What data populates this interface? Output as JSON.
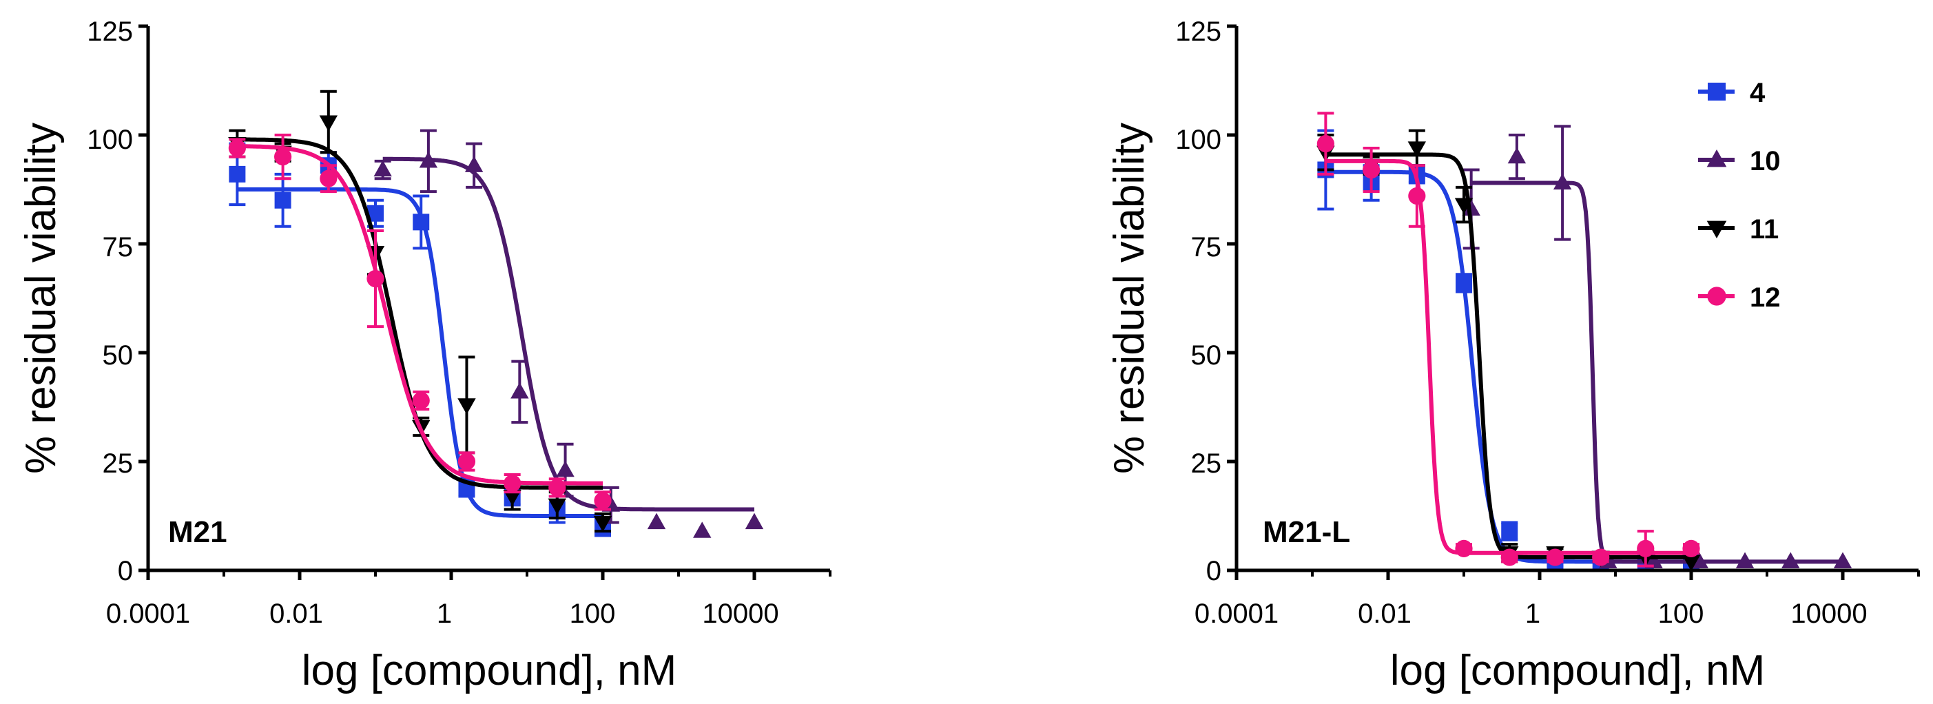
{
  "chart_data": [
    {
      "type": "scatter",
      "panel_label": "M21",
      "xlabel": "log [compound], nM",
      "ylabel": "% residual viability",
      "xscale": "log",
      "xlim": [
        0.0001,
        100000
      ],
      "ylim": [
        0,
        125
      ],
      "x_ticks": [
        0.0001,
        0.01,
        1,
        100,
        10000
      ],
      "x_tick_labels": [
        "0.0001",
        "0.01",
        "1",
        "100",
        "10000"
      ],
      "y_ticks": [
        0,
        25,
        50,
        75,
        100,
        125
      ],
      "y_tick_labels": [
        "0",
        "25",
        "50",
        "75",
        "100",
        "125"
      ],
      "grid": false,
      "legend": false,
      "series": [
        {
          "name": "4",
          "color": "#1f3fe0",
          "marker": "square",
          "x": [
            0.0015,
            0.006,
            0.024,
            0.1,
            0.4,
            1.6,
            6.4,
            25,
            100
          ],
          "y": [
            91,
            85,
            93,
            82,
            80,
            19,
            17,
            14,
            10
          ],
          "err": [
            7,
            6,
            3,
            3,
            6,
            2,
            2,
            3,
            2
          ],
          "fit": {
            "top": 87.5,
            "bottom": 12.5,
            "ec50": 0.8,
            "hill": 3.5
          }
        },
        {
          "name": "10",
          "color": "#4b1a6b",
          "marker": "triangle-up",
          "x": [
            0.125,
            0.5,
            2,
            8,
            32,
            128,
            512,
            2048,
            10000
          ],
          "y": [
            92,
            94,
            93,
            41,
            23,
            15,
            11,
            9,
            11
          ],
          "err": [
            2,
            7,
            5,
            7,
            6,
            4,
            0,
            0,
            0
          ],
          "fit": {
            "top": 94.5,
            "bottom": 14,
            "ec50": 8.5,
            "hill": 2.2
          }
        },
        {
          "name": "11",
          "color": "#000000",
          "marker": "triangle-down",
          "x": [
            0.0015,
            0.006,
            0.024,
            0.1,
            0.4,
            1.6,
            6.4,
            25,
            100
          ],
          "y": [
            98,
            96,
            103,
            73,
            33,
            38,
            17,
            15,
            11
          ],
          "err": [
            3,
            2,
            7,
            5,
            2,
            11,
            3,
            3,
            2
          ],
          "fit": {
            "top": 99,
            "bottom": 19,
            "ec50": 0.16,
            "hill": 1.8
          }
        },
        {
          "name": "12",
          "color": "#f0117f",
          "marker": "circle",
          "x": [
            0.0015,
            0.006,
            0.024,
            0.1,
            0.4,
            1.6,
            6.4,
            25,
            100
          ],
          "y": [
            97,
            95,
            90,
            67,
            39,
            25,
            20,
            19,
            16
          ],
          "err": [
            2,
            5,
            3,
            11,
            2,
            2,
            2,
            2,
            2
          ],
          "fit": {
            "top": 97.5,
            "bottom": 20,
            "ec50": 0.14,
            "hill": 1.6
          }
        }
      ]
    },
    {
      "type": "scatter",
      "panel_label": "M21-L",
      "xlabel": "log [compound], nM",
      "ylabel": "% residual viability",
      "xscale": "log",
      "xlim": [
        0.0001,
        100000
      ],
      "ylim": [
        0,
        125
      ],
      "x_ticks": [
        0.0001,
        0.01,
        1,
        100,
        10000
      ],
      "x_tick_labels": [
        "0.0001",
        "0.01",
        "1",
        "100",
        "10000"
      ],
      "y_ticks": [
        0,
        25,
        50,
        75,
        100,
        125
      ],
      "y_tick_labels": [
        "0",
        "25",
        "50",
        "75",
        "100",
        "125"
      ],
      "grid": false,
      "legend": true,
      "legend_position": "top-right",
      "series": [
        {
          "name": "4",
          "color": "#1f3fe0",
          "marker": "square",
          "x": [
            0.0015,
            0.006,
            0.024,
            0.1,
            0.4,
            1.6,
            6.4,
            25,
            100
          ],
          "y": [
            92,
            89,
            91,
            66,
            9,
            2,
            2,
            2,
            2
          ],
          "err": [
            9,
            4,
            2,
            2,
            2,
            1,
            0,
            0,
            0
          ],
          "fit": {
            "top": 91.5,
            "bottom": 2,
            "ec50": 0.13,
            "hill": 3.5
          }
        },
        {
          "name": "10",
          "color": "#4b1a6b",
          "marker": "triangle-up",
          "x": [
            0.125,
            0.5,
            2,
            8,
            32,
            128,
            512,
            2048,
            10000
          ],
          "y": [
            83,
            95,
            89,
            2,
            2,
            2,
            2,
            2,
            2
          ],
          "err": [
            9,
            5,
            13,
            0,
            0,
            0,
            0,
            0,
            0
          ],
          "fit": {
            "top": 89,
            "bottom": 2,
            "ec50": 5,
            "hill": 12
          }
        },
        {
          "name": "11",
          "color": "#000000",
          "marker": "triangle-down",
          "x": [
            0.0015,
            0.006,
            0.024,
            0.1,
            0.4,
            1.6,
            6.4,
            25,
            100
          ],
          "y": [
            96,
            93,
            97,
            84,
            4,
            4,
            3,
            3,
            2
          ],
          "err": [
            4,
            2,
            4,
            4,
            2,
            1,
            1,
            0,
            0
          ],
          "fit": {
            "top": 95.5,
            "bottom": 3,
            "ec50": 0.16,
            "hill": 6
          }
        },
        {
          "name": "12",
          "color": "#f0117f",
          "marker": "circle",
          "x": [
            0.0015,
            0.006,
            0.024,
            0.1,
            0.4,
            1.6,
            6.4,
            25,
            100
          ],
          "y": [
            98,
            92,
            86,
            5,
            3,
            3,
            3,
            5,
            5
          ],
          "err": [
            7,
            5,
            7,
            1,
            1,
            1,
            1,
            4,
            1
          ],
          "fit": {
            "top": 94,
            "bottom": 4,
            "ec50": 0.035,
            "hill": 8
          }
        }
      ]
    }
  ]
}
